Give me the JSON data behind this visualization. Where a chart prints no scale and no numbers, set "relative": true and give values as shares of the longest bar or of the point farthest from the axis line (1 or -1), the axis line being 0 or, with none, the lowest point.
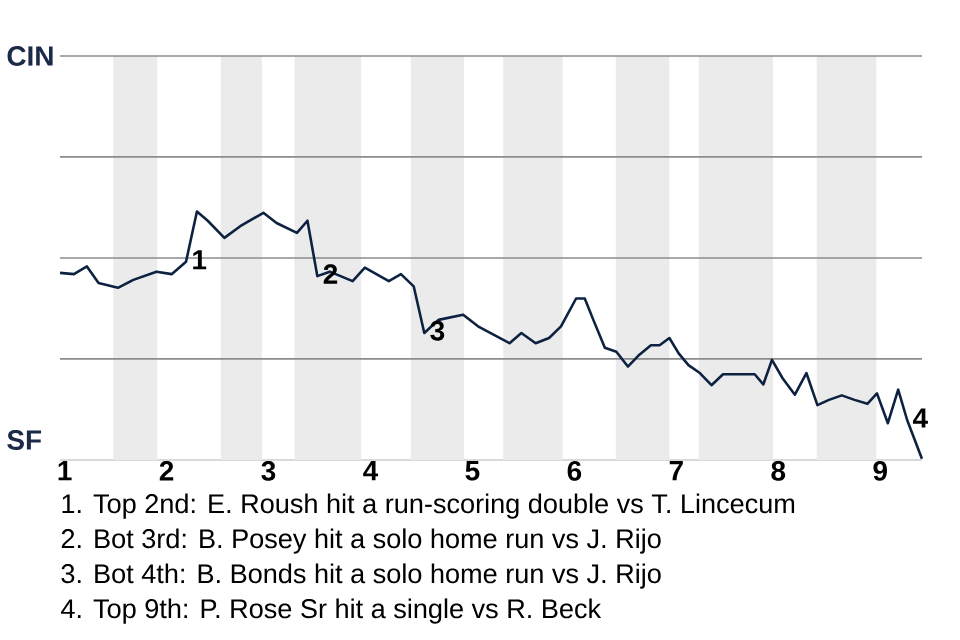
{
  "chart_data": {
    "type": "line",
    "relative": true,
    "x": [
      0.955,
      1.091,
      1.219,
      1.333,
      1.523,
      1.674,
      1.901,
      2.05,
      2.191,
      2.298,
      2.404,
      2.567,
      2.723,
      2.95,
      3.079,
      3.279,
      3.382,
      3.479,
      3.6,
      3.825,
      3.945,
      4.18,
      4.299,
      4.424,
      4.528,
      4.667,
      4.909,
      5.055,
      5.364,
      5.48,
      5.62,
      5.752,
      5.869,
      6.017,
      6.102,
      6.186,
      6.299,
      6.412,
      6.525,
      6.638,
      6.751,
      6.836,
      6.932,
      7.023,
      7.119,
      7.231,
      7.345,
      7.458,
      7.769,
      7.853,
      7.938,
      8.044,
      8.163,
      8.276,
      8.384,
      8.497,
      8.623,
      8.748,
      8.874,
      8.968,
      9.075,
      9.176,
      9.264,
      9.409
    ],
    "series": [
      {
        "color": "#0d2240",
        "values": [
          0.753,
          0.748,
          0.779,
          0.712,
          0.693,
          0.725,
          0.758,
          0.748,
          0.798,
          1,
          0.963,
          0.894,
          0.941,
          0.995,
          0.954,
          0.914,
          0.963,
          0.74,
          0.758,
          0.72,
          0.774,
          0.72,
          0.748,
          0.699,
          0.511,
          0.564,
          0.585,
          0.538,
          0.47,
          0.511,
          0.47,
          0.491,
          0.538,
          0.65,
          0.65,
          0.564,
          0.452,
          0.436,
          0.376,
          0.424,
          0.462,
          0.462,
          0.491,
          0.429,
          0.382,
          0.35,
          0.301,
          0.345,
          0.345,
          0.304,
          0.403,
          0.328,
          0.263,
          0.35,
          0.221,
          0.242,
          0.26,
          0.242,
          0.226,
          0.268,
          0.148,
          0.283,
          0.161,
          0.005
        ]
      }
    ],
    "xlim": [
      0.955,
      9.41
    ],
    "xticks": [
      1,
      2,
      3,
      4,
      5,
      6,
      7,
      8,
      9
    ],
    "ref_lines": [
      {
        "axis": "y",
        "value": 0.407,
        "color": "#8c8c8c"
      },
      {
        "axis": "y",
        "value": 0.813,
        "color": "#8c8c8c"
      },
      {
        "axis": "y",
        "value": 1.22,
        "color": "#8c8c8c"
      },
      {
        "axis": "y",
        "value": 1.626,
        "color": "#8c8c8c"
      }
    ],
    "bands": [
      {
        "axis": "x",
        "from": 1.477,
        "to": 1.909,
        "color": "#ebebeb"
      },
      {
        "axis": "x",
        "from": 2.532,
        "to": 2.936,
        "color": "#ebebeb"
      },
      {
        "axis": "x",
        "from": 3.255,
        "to": 3.909,
        "color": "#ebebeb"
      },
      {
        "axis": "x",
        "from": 4.396,
        "to": 4.917,
        "color": "#ebebeb"
      },
      {
        "axis": "x",
        "from": 5.302,
        "to": 5.884,
        "color": "#ebebeb"
      },
      {
        "axis": "x",
        "from": 6.407,
        "to": 6.932,
        "color": "#ebebeb"
      },
      {
        "axis": "x",
        "from": 7.22,
        "to": 7.949,
        "color": "#ebebeb"
      },
      {
        "axis": "x",
        "from": 8.377,
        "to": 8.962,
        "color": "#ebebeb"
      }
    ],
    "annotations": [
      "CIN",
      "SF",
      {
        "text": "1",
        "x": 2.191,
        "y": 0.798
      },
      {
        "text": "2",
        "x": 3.479,
        "y": 0.74
      },
      {
        "text": "3",
        "x": 4.528,
        "y": 0.511
      },
      {
        "text": "4",
        "x": 9.264,
        "y": 0.161
      },
      "1. Top 2nd: E. Roush hit a run-scoring double vs T. Lincecum",
      "2. Bot 3rd: B. Posey hit a solo home run vs J. Rijo",
      "3. Bot 4th: B. Bonds hit a solo home run vs J. Rijo",
      "4. Top 9th: P. Rose Sr hit a single vs R. Beck"
    ]
  }
}
